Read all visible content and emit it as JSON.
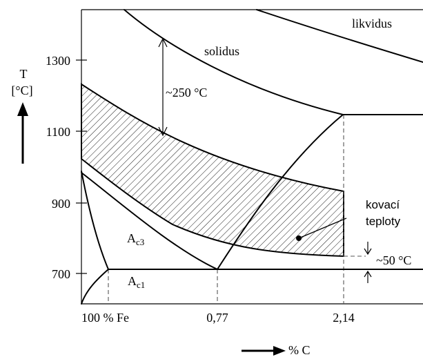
{
  "axes": {
    "y_symbol": "T",
    "y_unit": "[°C]",
    "y_ticks": [
      "1300",
      "1100",
      "900",
      "700"
    ],
    "x_ticks": [
      "100 % Fe",
      "0,77",
      "2,14"
    ],
    "x_label": "% C"
  },
  "regions": {
    "liquidus": "likvidus",
    "solidus": "solidus",
    "ac3_base": "A",
    "ac3_sub": "c3",
    "ac1_base": "A",
    "ac1_sub": "c1"
  },
  "annotations": {
    "gap_solidus": "~250 °C",
    "gap_lower": "~50 °C",
    "forging_line1": "kovací",
    "forging_line2": "teploty"
  }
}
